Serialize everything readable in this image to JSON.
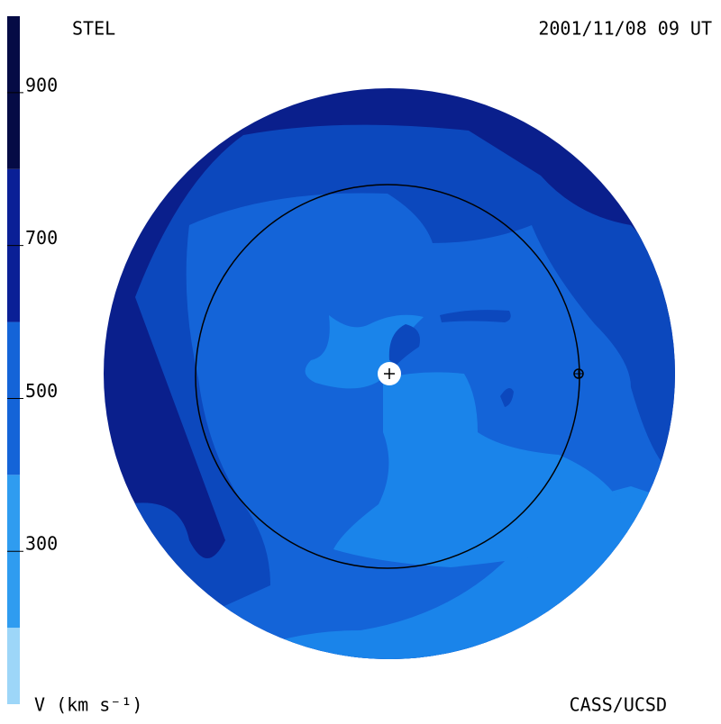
{
  "header": {
    "left": "STEL",
    "right": "2001/11/08 09 UT"
  },
  "footer": {
    "left": "V (km s⁻¹)",
    "right": "CASS/UCSD"
  },
  "colorbar": {
    "lim": [
      100,
      1000
    ],
    "ticks": [
      300,
      500,
      700,
      900
    ],
    "levels": [
      100,
      200,
      400,
      600,
      800,
      1000
    ],
    "colors": [
      "#9dd6f8",
      "#2f9cf0",
      "#1464d8",
      "#0a1f96",
      "#050b45"
    ]
  }
}
